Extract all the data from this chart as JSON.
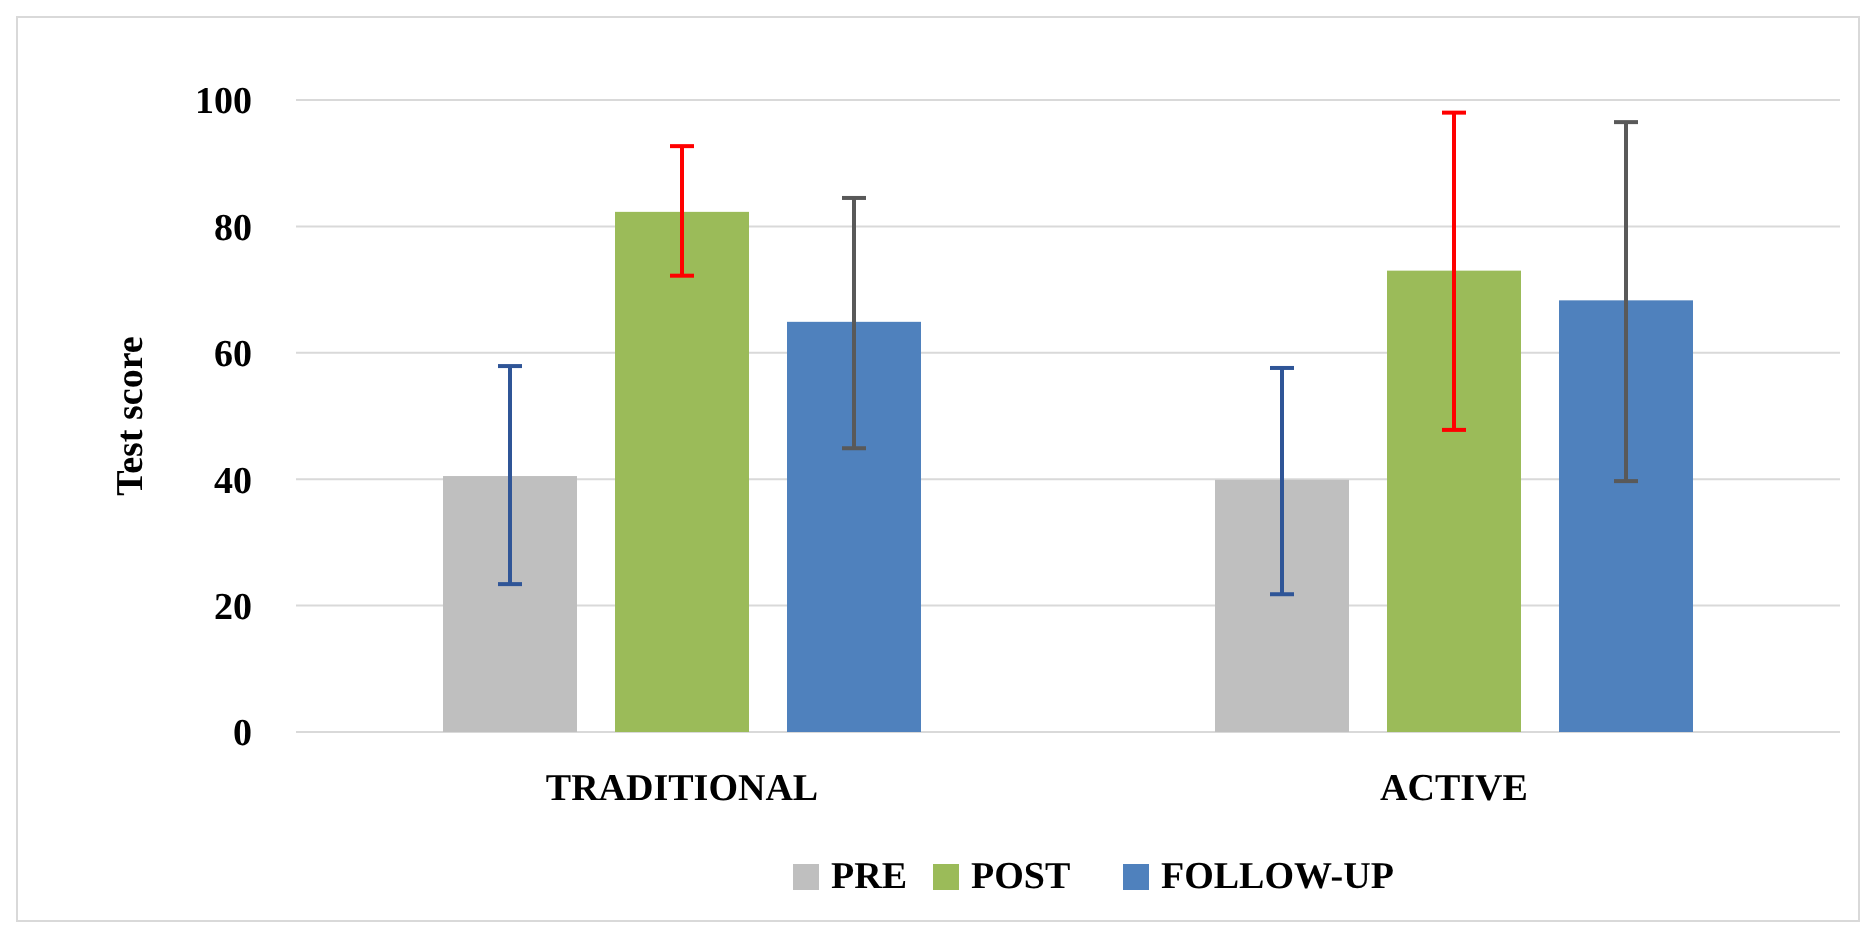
{
  "chart_data": {
    "type": "bar",
    "ylabel": "Test score",
    "categories": [
      "TRADITIONAL",
      "ACTIVE"
    ],
    "ylim": [
      0,
      100
    ],
    "yticks": [
      0,
      20,
      40,
      60,
      80,
      100
    ],
    "grid": "y",
    "legend": "bottom",
    "series": [
      {
        "name": "PRE",
        "color": "#bfbfbf",
        "values": [
          40.5,
          39.9
        ],
        "errors": [
          [
            23.4,
            57.9
          ],
          [
            21.8,
            57.6
          ]
        ]
      },
      {
        "name": "POST",
        "color": "#9bbb59",
        "values": [
          82.3,
          73
        ],
        "errors": [
          [
            72.2,
            92.7
          ],
          [
            47.8,
            98
          ]
        ]
      },
      {
        "name": "FOLLOW-UP",
        "color": "#4f81bd",
        "values": [
          64.9,
          68.3
        ],
        "errors": [
          [
            44.9,
            84.5
          ],
          [
            39.7,
            96.5
          ]
        ]
      }
    ]
  }
}
